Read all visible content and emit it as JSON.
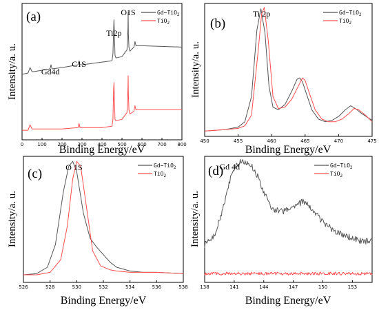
{
  "colors": {
    "gd_tio2": "#555555",
    "tio2": "#ff4d4d"
  },
  "chart_data": [
    {
      "id": "a",
      "type": "line",
      "panel_label": "(a)",
      "xlabel": "Binding Energy/eV",
      "ylabel": "Intensity/a. u.",
      "xlim": [
        0,
        800
      ],
      "xticks": [
        "0",
        "100",
        "200",
        "300",
        "400",
        "500",
        "600",
        "700",
        "800"
      ],
      "legend": [
        "Gd−TiO",
        "TiO"
      ],
      "legend_sub": [
        "2",
        "2"
      ],
      "legend_position": "top-right",
      "annotations": [
        {
          "text": "Gd4d",
          "x": 142
        },
        {
          "text": "C1S",
          "x": 285
        },
        {
          "text": "Ti2p",
          "x": 460
        },
        {
          "text": "O1S",
          "x": 531
        }
      ],
      "series": [
        {
          "name": "Gd−TiO2",
          "x": [
            0,
            30,
            40,
            50,
            60,
            100,
            140,
            145,
            150,
            200,
            280,
            285,
            290,
            300,
            400,
            450,
            455,
            458,
            460,
            462,
            465,
            470,
            500,
            525,
            530,
            531,
            532,
            535,
            540,
            560,
            565,
            570,
            600,
            800
          ],
          "y": [
            0.48,
            0.49,
            0.53,
            0.5,
            0.5,
            0.51,
            0.52,
            0.55,
            0.52,
            0.53,
            0.55,
            0.58,
            0.55,
            0.55,
            0.57,
            0.58,
            0.63,
            0.8,
            0.88,
            0.78,
            0.62,
            0.6,
            0.61,
            0.66,
            0.82,
            0.94,
            0.78,
            0.68,
            0.65,
            0.68,
            0.72,
            0.69,
            0.69,
            0.68
          ]
        },
        {
          "name": "TiO2",
          "x": [
            0,
            30,
            40,
            50,
            60,
            100,
            200,
            280,
            285,
            290,
            300,
            400,
            450,
            455,
            458,
            460,
            462,
            465,
            470,
            500,
            525,
            530,
            531,
            532,
            535,
            540,
            560,
            565,
            570,
            600,
            800
          ],
          "y": [
            0.07,
            0.07,
            0.11,
            0.08,
            0.08,
            0.08,
            0.08,
            0.09,
            0.12,
            0.09,
            0.09,
            0.09,
            0.1,
            0.15,
            0.36,
            0.42,
            0.3,
            0.15,
            0.14,
            0.15,
            0.2,
            0.38,
            0.47,
            0.34,
            0.22,
            0.19,
            0.21,
            0.25,
            0.22,
            0.22,
            0.22
          ]
        }
      ]
    },
    {
      "id": "b",
      "type": "line",
      "panel_label": "(b)",
      "xlabel": "Binding Energy/eV",
      "ylabel": "Intensity/a. u.",
      "xlim": [
        450,
        475
      ],
      "xticks": [
        "450",
        "455",
        "460",
        "465",
        "470",
        "475"
      ],
      "legend": [
        "Gd−TiO",
        "TiO"
      ],
      "legend_sub": [
        "2",
        "2"
      ],
      "legend_position": "top-right",
      "annotations": [
        {
          "text": "Ti  2p",
          "x": 458.5
        }
      ],
      "series": [
        {
          "name": "Gd−TiO2",
          "x": [
            450,
            453,
            455,
            456,
            457,
            457.8,
            458.4,
            459,
            459.6,
            460.2,
            461,
            462,
            463,
            463.8,
            464.2,
            464.6,
            465.2,
            466,
            467,
            468,
            469,
            470,
            471,
            471.8,
            472.5,
            473.5,
            475
          ],
          "y": [
            0.04,
            0.05,
            0.07,
            0.11,
            0.3,
            0.8,
            0.96,
            0.78,
            0.38,
            0.22,
            0.2,
            0.24,
            0.34,
            0.43,
            0.44,
            0.41,
            0.32,
            0.2,
            0.13,
            0.11,
            0.12,
            0.15,
            0.2,
            0.23,
            0.21,
            0.17,
            0.12
          ]
        },
        {
          "name": "TiO2",
          "x": [
            450,
            453,
            455,
            456,
            457,
            458,
            458.5,
            458.9,
            459.5,
            460.2,
            461,
            462,
            463,
            464,
            464.6,
            465,
            465.6,
            466.5,
            467.5,
            468.5,
            469.5,
            470.5,
            471.5,
            472.3,
            473,
            474,
            475
          ],
          "y": [
            0.04,
            0.05,
            0.06,
            0.08,
            0.16,
            0.65,
            0.92,
            0.97,
            0.72,
            0.3,
            0.21,
            0.22,
            0.28,
            0.38,
            0.44,
            0.42,
            0.33,
            0.2,
            0.13,
            0.11,
            0.11,
            0.13,
            0.17,
            0.21,
            0.2,
            0.16,
            0.11
          ]
        }
      ]
    },
    {
      "id": "c",
      "type": "line",
      "panel_label": "(c)",
      "xlabel": "Binding Energy/eV",
      "ylabel": "Intensity/a. u.",
      "xlim": [
        526,
        538
      ],
      "xticks": [
        "526",
        "528",
        "530",
        "532",
        "534",
        "536",
        "538"
      ],
      "legend": [
        "Gd−TiO",
        "TiO"
      ],
      "legend_sub": [
        "2",
        "2"
      ],
      "legend_position": "top-right",
      "annotations": [
        {
          "text": "O 1S",
          "x": 529.8
        }
      ],
      "series": [
        {
          "name": "Gd−TiO2",
          "x": [
            526,
            527,
            527.8,
            528.4,
            529,
            529.4,
            529.7,
            530,
            530.5,
            531,
            531.5,
            532,
            532.5,
            533,
            534,
            535,
            536,
            538
          ],
          "y": [
            0.06,
            0.07,
            0.12,
            0.3,
            0.72,
            0.92,
            0.96,
            0.88,
            0.55,
            0.35,
            0.28,
            0.22,
            0.16,
            0.12,
            0.09,
            0.08,
            0.08,
            0.07
          ]
        },
        {
          "name": "TiO2",
          "x": [
            526,
            527,
            528,
            528.8,
            529.3,
            529.7,
            530,
            530.3,
            530.7,
            531.2,
            531.8,
            532.5,
            533,
            534,
            535,
            536,
            538
          ],
          "y": [
            0.06,
            0.06,
            0.08,
            0.18,
            0.45,
            0.82,
            0.96,
            0.92,
            0.62,
            0.25,
            0.13,
            0.1,
            0.09,
            0.08,
            0.08,
            0.08,
            0.07
          ]
        }
      ]
    },
    {
      "id": "d",
      "type": "line",
      "panel_label": "(d)",
      "xlabel": "Binding Energy/eV",
      "ylabel": "Intensity/a. u.",
      "xlim": [
        138,
        155
      ],
      "xticks": [
        "138",
        "141",
        "144",
        "147",
        "150",
        "153"
      ],
      "legend": [
        "Gd−TiO",
        "TiO"
      ],
      "legend_sub": [
        "2",
        "2"
      ],
      "legend_position": "top-right",
      "annotations": [
        {
          "text": "Gd  4d",
          "x": 139.5
        }
      ],
      "series": [
        {
          "name": "Gd−TiO2",
          "x": [
            138,
            139,
            140,
            140.5,
            141,
            141.5,
            142,
            142.5,
            143,
            143.5,
            144,
            144.5,
            145,
            146,
            147,
            148,
            148.5,
            149,
            150,
            151,
            152,
            153,
            154,
            155
          ],
          "y": [
            0.3,
            0.38,
            0.62,
            0.8,
            0.9,
            0.95,
            0.96,
            0.95,
            0.9,
            0.82,
            0.72,
            0.63,
            0.58,
            0.56,
            0.6,
            0.64,
            0.62,
            0.57,
            0.48,
            0.42,
            0.38,
            0.35,
            0.33,
            0.32
          ],
          "noise": 0.025
        },
        {
          "name": "TiO2",
          "x": [
            138,
            141,
            144,
            147,
            150,
            153,
            155
          ],
          "y": [
            0.07,
            0.07,
            0.07,
            0.07,
            0.07,
            0.07,
            0.07
          ],
          "noise": 0.012
        }
      ]
    }
  ]
}
